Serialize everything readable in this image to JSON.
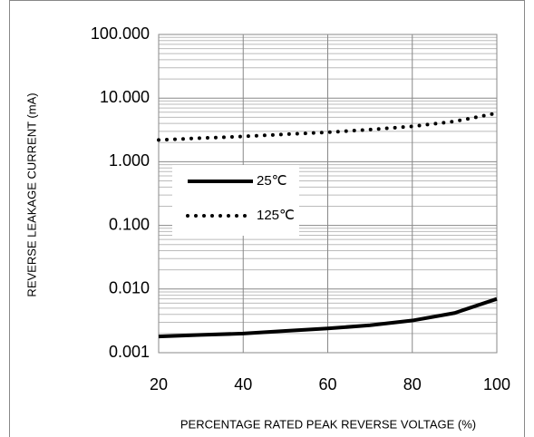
{
  "chart_data": {
    "type": "line",
    "xlabel": "PERCENTAGE RATED PEAK REVERSE VOLTAGE (%)",
    "ylabel": "REVERSE LEAKAGE CURRENT (mA)",
    "x": [
      20,
      30,
      40,
      50,
      60,
      70,
      80,
      90,
      100
    ],
    "series": [
      {
        "name": "25℃",
        "color": "#000000",
        "dash": "solid",
        "values": [
          0.0018,
          0.0019,
          0.002,
          0.0022,
          0.0024,
          0.0027,
          0.0032,
          0.0042,
          0.007
        ]
      },
      {
        "name": "125℃",
        "color": "#000000",
        "dash": "dotted",
        "values": [
          2.2,
          2.35,
          2.5,
          2.7,
          2.9,
          3.2,
          3.6,
          4.3,
          5.8
        ]
      }
    ],
    "xlim": [
      20,
      100
    ],
    "xticks": [
      20,
      40,
      60,
      80,
      100
    ],
    "ylim": [
      0.001,
      100
    ],
    "ylog": true,
    "yticks": [
      {
        "value": 0.001,
        "label": "0.001"
      },
      {
        "value": 0.01,
        "label": "0.010"
      },
      {
        "value": 0.1,
        "label": "0.100"
      },
      {
        "value": 1,
        "label": "1.000"
      },
      {
        "value": 10,
        "label": "10.000"
      },
      {
        "value": 100,
        "label": "100.000"
      }
    ],
    "grid": true,
    "minor_grid": true,
    "legend": "center-left"
  }
}
